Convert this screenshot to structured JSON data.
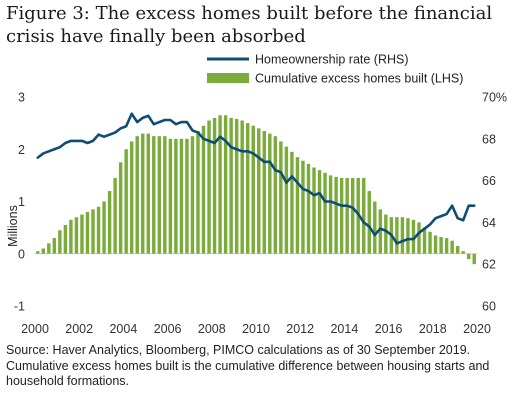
{
  "figure": {
    "title": "Figure 3: The excess homes built before the financial crisis have finally been absorbed",
    "source": "Source: Haver Analytics, Bloomberg, PIMCO calculations as of 30 September 2019. Cumulative excess homes built is the cumulative difference between housing starts and household formations."
  },
  "chart_data": {
    "type": "bar+line",
    "title": "Figure 3: The excess homes built before the financial crisis have finally been absorbed",
    "ylabel": "Millions",
    "ylabel_right": "",
    "xlim": [
      2000,
      2020
    ],
    "ylim": [
      -1,
      3
    ],
    "ylim_right": [
      60,
      70
    ],
    "x_ticks": [
      "2000",
      "2002",
      "2004",
      "2006",
      "2008",
      "2010",
      "2012",
      "2014",
      "2016",
      "2018",
      "2020"
    ],
    "y_ticks_left": [
      "3",
      "2",
      "1",
      "0",
      "-1"
    ],
    "y_ticks_right": [
      "70%",
      "68",
      "66",
      "64",
      "62",
      "60"
    ],
    "legend_position": "top-right",
    "grid": false,
    "colors": {
      "bars": "#7aab3b",
      "line": "#0f4d72"
    },
    "series": [
      {
        "name": "Cumulative excess homes built (LHS)",
        "kind": "bar",
        "axis": "left",
        "x": [
          2000.0,
          2000.25,
          2000.5,
          2000.75,
          2001.0,
          2001.25,
          2001.5,
          2001.75,
          2002.0,
          2002.25,
          2002.5,
          2002.75,
          2003.0,
          2003.25,
          2003.5,
          2003.75,
          2004.0,
          2004.25,
          2004.5,
          2004.75,
          2005.0,
          2005.25,
          2005.5,
          2005.75,
          2006.0,
          2006.25,
          2006.5,
          2006.75,
          2007.0,
          2007.25,
          2007.5,
          2007.75,
          2008.0,
          2008.25,
          2008.5,
          2008.75,
          2009.0,
          2009.25,
          2009.5,
          2009.75,
          2010.0,
          2010.25,
          2010.5,
          2010.75,
          2011.0,
          2011.25,
          2011.5,
          2011.75,
          2012.0,
          2012.25,
          2012.5,
          2012.75,
          2013.0,
          2013.25,
          2013.5,
          2013.75,
          2014.0,
          2014.25,
          2014.5,
          2014.75,
          2015.0,
          2015.25,
          2015.5,
          2015.75,
          2016.0,
          2016.25,
          2016.5,
          2016.75,
          2017.0,
          2017.25,
          2017.5,
          2017.75,
          2018.0,
          2018.25,
          2018.5,
          2018.75,
          2019.0,
          2019.25,
          2019.5,
          2019.75
        ],
        "values": [
          0.05,
          0.1,
          0.2,
          0.3,
          0.45,
          0.55,
          0.65,
          0.7,
          0.75,
          0.8,
          0.85,
          0.9,
          1.0,
          1.2,
          1.45,
          1.75,
          2.0,
          2.15,
          2.25,
          2.3,
          2.3,
          2.25,
          2.25,
          2.25,
          2.2,
          2.2,
          2.2,
          2.2,
          2.25,
          2.35,
          2.45,
          2.55,
          2.6,
          2.65,
          2.65,
          2.6,
          2.58,
          2.55,
          2.5,
          2.45,
          2.4,
          2.35,
          2.3,
          2.25,
          2.15,
          2.05,
          1.95,
          1.85,
          1.78,
          1.72,
          1.65,
          1.6,
          1.55,
          1.5,
          1.47,
          1.45,
          1.45,
          1.45,
          1.45,
          1.45,
          1.2,
          1.0,
          0.85,
          0.75,
          0.7,
          0.7,
          0.7,
          0.68,
          0.65,
          0.6,
          0.5,
          0.42,
          0.35,
          0.32,
          0.3,
          0.25,
          0.15,
          0.05,
          -0.1,
          -0.2
        ]
      },
      {
        "name": "Homeownership rate (RHS)",
        "kind": "line",
        "axis": "right",
        "x": [
          2000.0,
          2000.25,
          2000.5,
          2000.75,
          2001.0,
          2001.25,
          2001.5,
          2001.75,
          2002.0,
          2002.25,
          2002.5,
          2002.75,
          2003.0,
          2003.25,
          2003.5,
          2003.75,
          2004.0,
          2004.25,
          2004.5,
          2004.75,
          2005.0,
          2005.25,
          2005.5,
          2005.75,
          2006.0,
          2006.25,
          2006.5,
          2006.75,
          2007.0,
          2007.25,
          2007.5,
          2007.75,
          2008.0,
          2008.25,
          2008.5,
          2008.75,
          2009.0,
          2009.25,
          2009.5,
          2009.75,
          2010.0,
          2010.25,
          2010.5,
          2010.75,
          2011.0,
          2011.25,
          2011.5,
          2011.75,
          2012.0,
          2012.25,
          2012.5,
          2012.75,
          2013.0,
          2013.25,
          2013.5,
          2013.75,
          2014.0,
          2014.25,
          2014.5,
          2014.75,
          2015.0,
          2015.25,
          2015.5,
          2015.75,
          2016.0,
          2016.25,
          2016.5,
          2016.75,
          2017.0,
          2017.25,
          2017.5,
          2017.75,
          2018.0,
          2018.25,
          2018.5,
          2018.75,
          2019.0,
          2019.25,
          2019.5,
          2019.75
        ],
        "values": [
          67.1,
          67.3,
          67.4,
          67.5,
          67.6,
          67.8,
          67.9,
          67.9,
          67.9,
          67.8,
          67.9,
          68.2,
          68.1,
          68.2,
          68.3,
          68.5,
          68.6,
          69.2,
          68.8,
          69.0,
          69.1,
          68.7,
          68.8,
          68.9,
          68.9,
          68.7,
          68.8,
          68.8,
          68.4,
          68.3,
          68.0,
          67.9,
          67.8,
          68.1,
          67.9,
          67.6,
          67.5,
          67.4,
          67.4,
          67.3,
          67.1,
          66.9,
          66.9,
          66.5,
          66.4,
          65.9,
          66.2,
          65.9,
          65.6,
          65.5,
          65.3,
          65.4,
          65.0,
          65.0,
          64.9,
          64.8,
          64.8,
          64.7,
          64.4,
          64.0,
          63.8,
          63.4,
          63.7,
          63.6,
          63.4,
          63.0,
          63.1,
          63.2,
          63.2,
          63.5,
          63.7,
          63.9,
          64.2,
          64.3,
          64.4,
          64.8,
          64.2,
          64.1,
          64.8,
          64.8
        ]
      }
    ]
  }
}
